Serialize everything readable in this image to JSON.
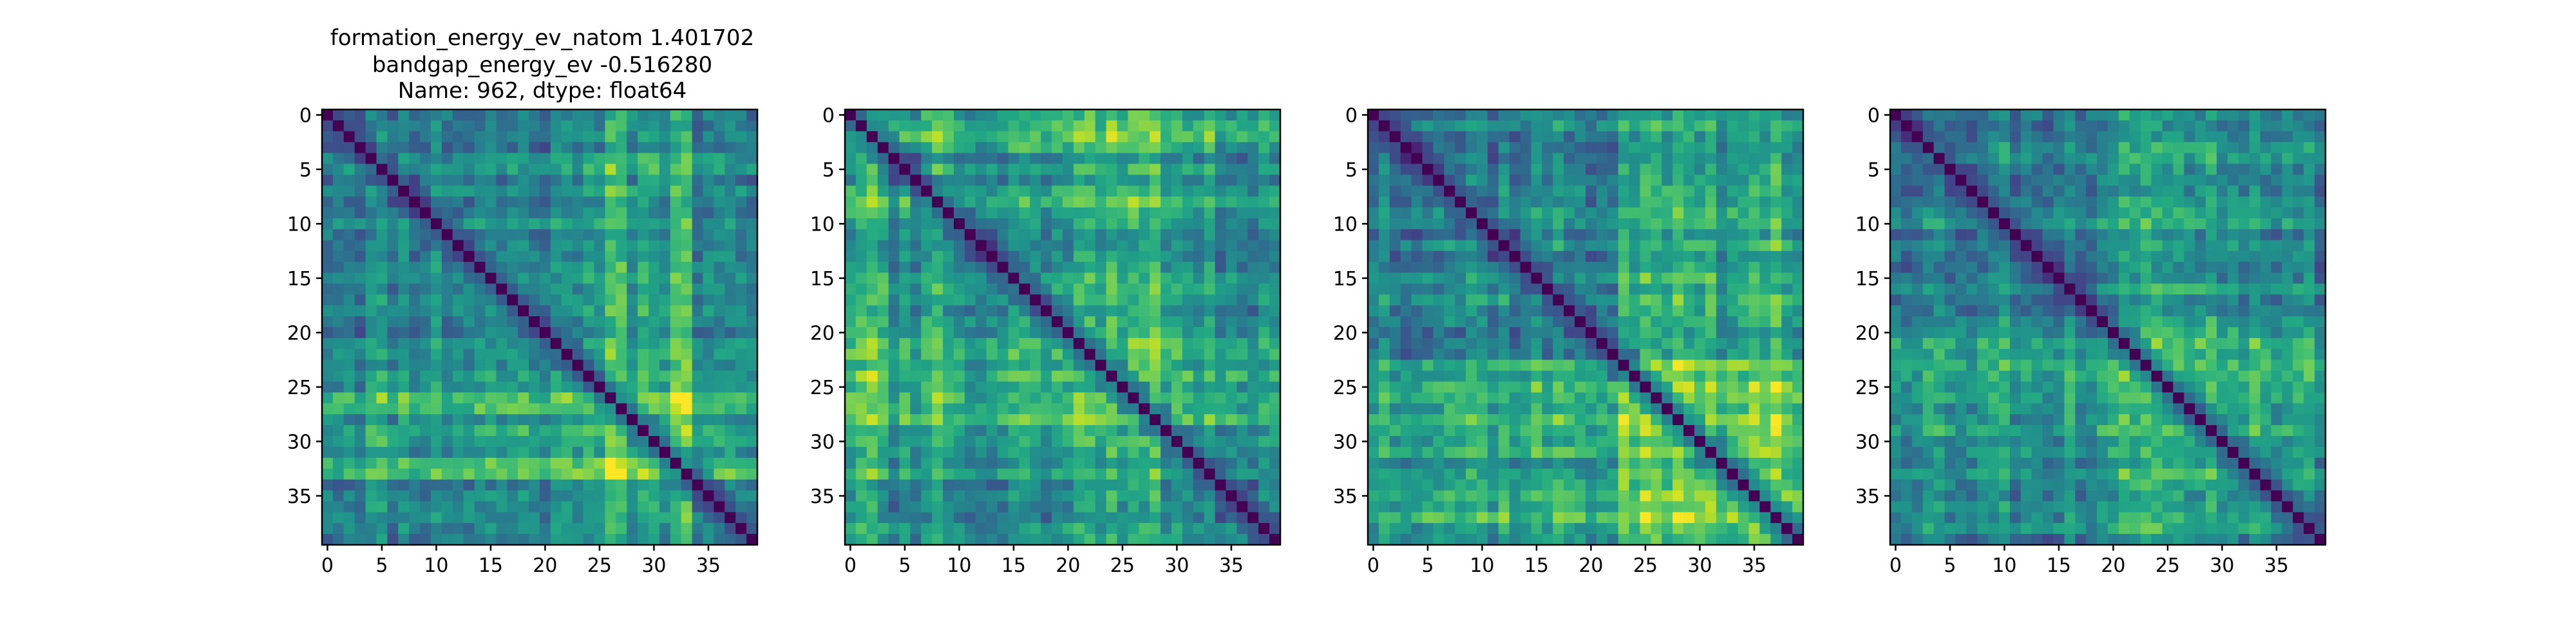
{
  "chart_data": [
    {
      "type": "heatmap",
      "rows": 40,
      "cols": 40,
      "colormap": "viridis",
      "title_lines": [
        "formation_energy_ev_natom    1.401702",
        "bandgap_energy_ev          -0.516280",
        "Name: 962, dtype: float64"
      ],
      "x_ticks": [
        0,
        5,
        10,
        15,
        20,
        25,
        30,
        35
      ],
      "y_ticks": [
        0,
        5,
        10,
        15,
        20,
        25,
        30,
        35
      ],
      "xlim": [
        -0.5,
        39.5
      ],
      "ylim": [
        39.5,
        -0.5
      ],
      "seed": 11,
      "hot_ranges": [
        [
          23,
          33
        ]
      ]
    },
    {
      "type": "heatmap",
      "rows": 40,
      "cols": 40,
      "colormap": "viridis",
      "title_lines": [],
      "x_ticks": [
        0,
        5,
        10,
        15,
        20,
        25,
        30,
        35
      ],
      "y_ticks": [
        0,
        5,
        10,
        15,
        20,
        25,
        30,
        35
      ],
      "xlim": [
        -0.5,
        39.5
      ],
      "ylim": [
        39.5,
        -0.5
      ],
      "seed": 23,
      "hot_ranges": [
        [
          0,
          3
        ],
        [
          7,
          9
        ],
        [
          20,
          30
        ]
      ]
    },
    {
      "type": "heatmap",
      "rows": 40,
      "cols": 40,
      "colormap": "viridis",
      "title_lines": [],
      "x_ticks": [
        0,
        5,
        10,
        15,
        20,
        25,
        30,
        35
      ],
      "y_ticks": [
        0,
        5,
        10,
        15,
        20,
        25,
        30,
        35
      ],
      "xlim": [
        -0.5,
        39.5
      ],
      "ylim": [
        39.5,
        -0.5
      ],
      "seed": 37,
      "hot_ranges": [
        [
          23,
          38
        ]
      ]
    },
    {
      "type": "heatmap",
      "rows": 40,
      "cols": 40,
      "colormap": "viridis",
      "title_lines": [],
      "x_ticks": [
        0,
        5,
        10,
        15,
        20,
        25,
        30,
        35
      ],
      "y_ticks": [
        0,
        5,
        10,
        15,
        20,
        25,
        30,
        35
      ],
      "xlim": [
        -0.5,
        39.5
      ],
      "ylim": [
        39.5,
        -0.5
      ],
      "seed": 53,
      "hot_ranges": [
        [
          20,
          34
        ]
      ]
    }
  ]
}
